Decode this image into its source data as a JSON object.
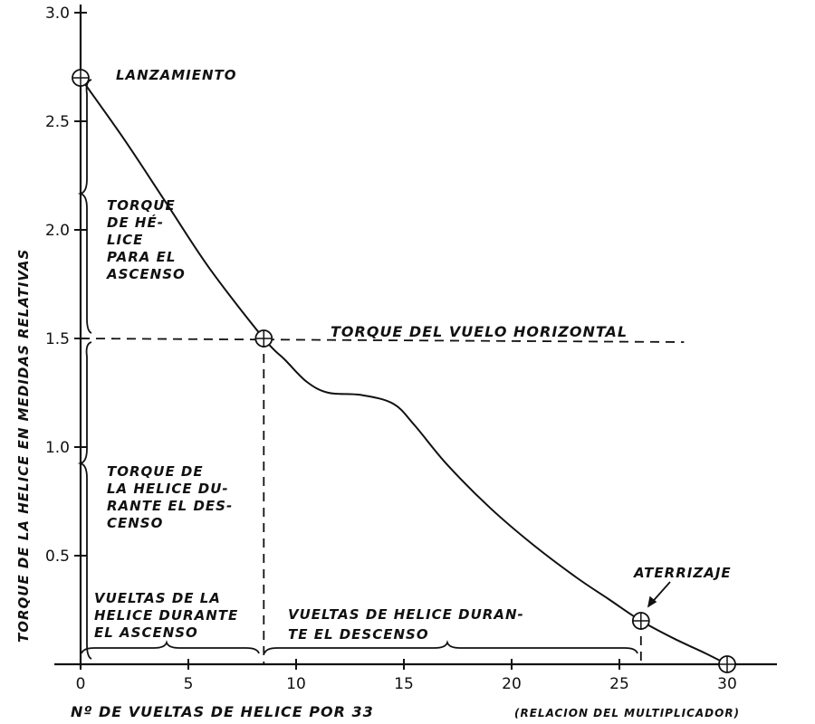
{
  "chart_data": {
    "type": "line",
    "xlabel": "Nº DE VUELTAS DE HELICE POR 33",
    "xlabel_note": "(RELACION DEL MULTIPLICADOR)",
    "ylabel": "TORQUE DE LA HELICE EN MEDIDAS RELATIVAS",
    "x_ticks": [
      "0",
      "5",
      "10",
      "15",
      "20",
      "25",
      "30"
    ],
    "y_ticks": [
      "0.5",
      "1.0",
      "1.5",
      "2.0",
      "2.5",
      "3.0"
    ],
    "xlim": [
      0,
      32
    ],
    "ylim": [
      0,
      3.0
    ],
    "grid": false,
    "series": [
      {
        "x": [
          0,
          2,
          4,
          6,
          8.5,
          9.5,
          10.5,
          11.5,
          13,
          14.5,
          15.5,
          17,
          19,
          21,
          23,
          24.5,
          26,
          27.5,
          29,
          30
        ],
        "y": [
          2.7,
          2.42,
          2.12,
          1.82,
          1.5,
          1.4,
          1.3,
          1.25,
          1.24,
          1.2,
          1.1,
          0.92,
          0.72,
          0.55,
          0.4,
          0.3,
          0.2,
          0.12,
          0.05,
          0.0
        ]
      }
    ],
    "markers": [
      {
        "x": 0,
        "y": 2.7
      },
      {
        "x": 8.5,
        "y": 1.5
      },
      {
        "x": 26,
        "y": 0.2
      },
      {
        "x": 30,
        "y": 0.0
      }
    ],
    "reference_line": {
      "y": 1.5,
      "label": "TORQUE DEL VUELO HORIZONTAL"
    },
    "vertical_drops": [
      8.5,
      26
    ],
    "annotations": {
      "lanzamiento": "LANZAMIENTO",
      "aterrizaje": "ATERRIZAJE",
      "torque_ascenso": [
        "TORQUE",
        "DE HÉ-",
        "LICE",
        "PARA EL",
        "ASCENSO"
      ],
      "torque_descenso": [
        "TORQUE DE",
        "LA HELICE DU-",
        "RANTE EL DES-",
        "CENSO"
      ],
      "vueltas_ascenso": [
        "VUELTAS DE LA",
        "HELICE DURANTE",
        "EL ASCENSO"
      ],
      "vueltas_descenso": [
        "VUELTAS DE HELICE DURAN-",
        "TE EL DESCENSO"
      ]
    }
  }
}
